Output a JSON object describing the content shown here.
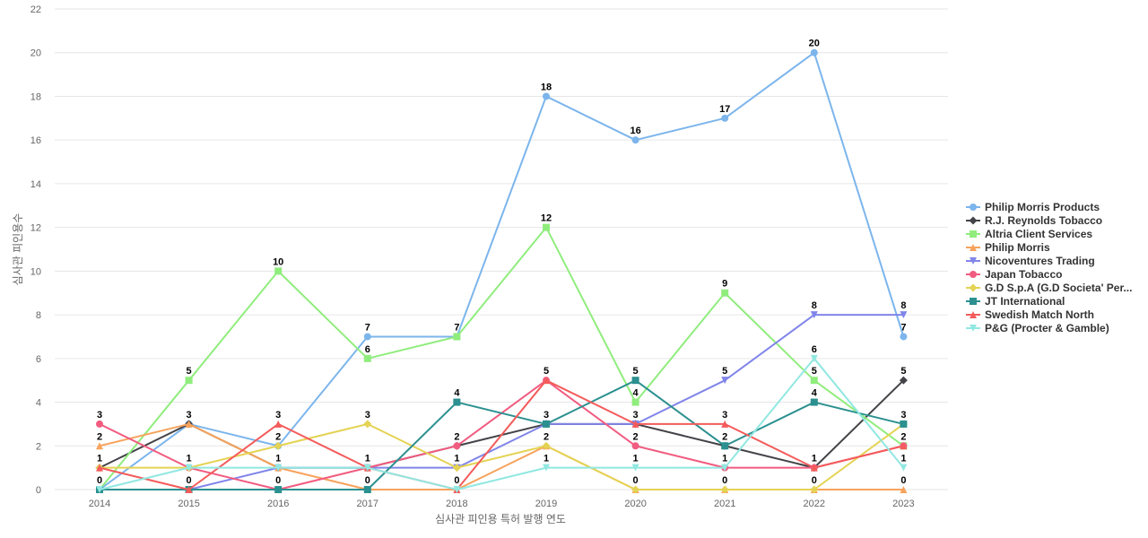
{
  "chart_data": {
    "type": "line",
    "title": "",
    "xlabel": "심사관 피인용 특허 발행 연도",
    "ylabel": "심사관 피인용수",
    "ylim": [
      0,
      22
    ],
    "yticks": [
      0,
      2,
      4,
      6,
      8,
      10,
      12,
      14,
      16,
      18,
      20,
      22
    ],
    "grid": true,
    "legend_position": "right",
    "categories": [
      "2014",
      "2015",
      "2016",
      "2017",
      "2018",
      "2019",
      "2020",
      "2021",
      "2022",
      "2023"
    ],
    "series": [
      {
        "name": "Philip Morris Products",
        "color": "#7cb5ec",
        "marker": "circle",
        "values": [
          0,
          3,
          2,
          7,
          7,
          18,
          16,
          17,
          20,
          7
        ]
      },
      {
        "name": "R.J. Reynolds Tobacco",
        "color": "#434348",
        "marker": "diamond",
        "values": [
          1,
          3,
          1,
          1,
          2,
          3,
          3,
          2,
          1,
          5
        ]
      },
      {
        "name": "Altria Client Services",
        "color": "#90ed7d",
        "marker": "square",
        "values": [
          0,
          5,
          10,
          6,
          7,
          12,
          4,
          9,
          5,
          2
        ]
      },
      {
        "name": "Philip Morris",
        "color": "#f7a35c",
        "marker": "triangle",
        "values": [
          2,
          3,
          1,
          0,
          0,
          2,
          0,
          0,
          0,
          0
        ]
      },
      {
        "name": "Nicoventures Trading",
        "color": "#8085e9",
        "marker": "triangle-down",
        "values": [
          0,
          0,
          1,
          1,
          1,
          3,
          3,
          5,
          8,
          8
        ]
      },
      {
        "name": "Japan Tobacco",
        "color": "#f15c80",
        "marker": "circle",
        "values": [
          3,
          1,
          0,
          1,
          2,
          5,
          2,
          1,
          1,
          2
        ]
      },
      {
        "name": "G.D S.p.A (G.D Societa' Per...",
        "color": "#e4d354",
        "marker": "diamond",
        "values": [
          1,
          1,
          2,
          3,
          1,
          2,
          0,
          0,
          0,
          3
        ]
      },
      {
        "name": "JT International",
        "color": "#2b908f",
        "marker": "square",
        "values": [
          0,
          0,
          0,
          0,
          4,
          3,
          5,
          2,
          4,
          3
        ]
      },
      {
        "name": "Swedish Match North",
        "color": "#f45b5b",
        "marker": "triangle",
        "values": [
          1,
          0,
          3,
          1,
          0,
          5,
          3,
          3,
          1,
          2
        ]
      },
      {
        "name": "P&G (Procter & Gamble)",
        "color": "#91e8e1",
        "marker": "triangle-down",
        "values": [
          0,
          1,
          1,
          1,
          0,
          1,
          1,
          1,
          6,
          1
        ]
      }
    ],
    "data_labels": {
      "2014": [
        3,
        2,
        1,
        0
      ],
      "2015": [
        5,
        3,
        1,
        0
      ],
      "2016": [
        10,
        3,
        2,
        1,
        0
      ],
      "2017": [
        7,
        6,
        3,
        1,
        0
      ],
      "2018": [
        7,
        4,
        2,
        1,
        0
      ],
      "2019": [
        18,
        12,
        5,
        3,
        2,
        1
      ],
      "2020": [
        16,
        5,
        4,
        3,
        2,
        1,
        0
      ],
      "2021": [
        17,
        9,
        5,
        3,
        2,
        1,
        0
      ],
      "2022": [
        20,
        8,
        6,
        5,
        4,
        1,
        0
      ],
      "2023": [
        8,
        7,
        5,
        3,
        2,
        1,
        0
      ]
    }
  }
}
